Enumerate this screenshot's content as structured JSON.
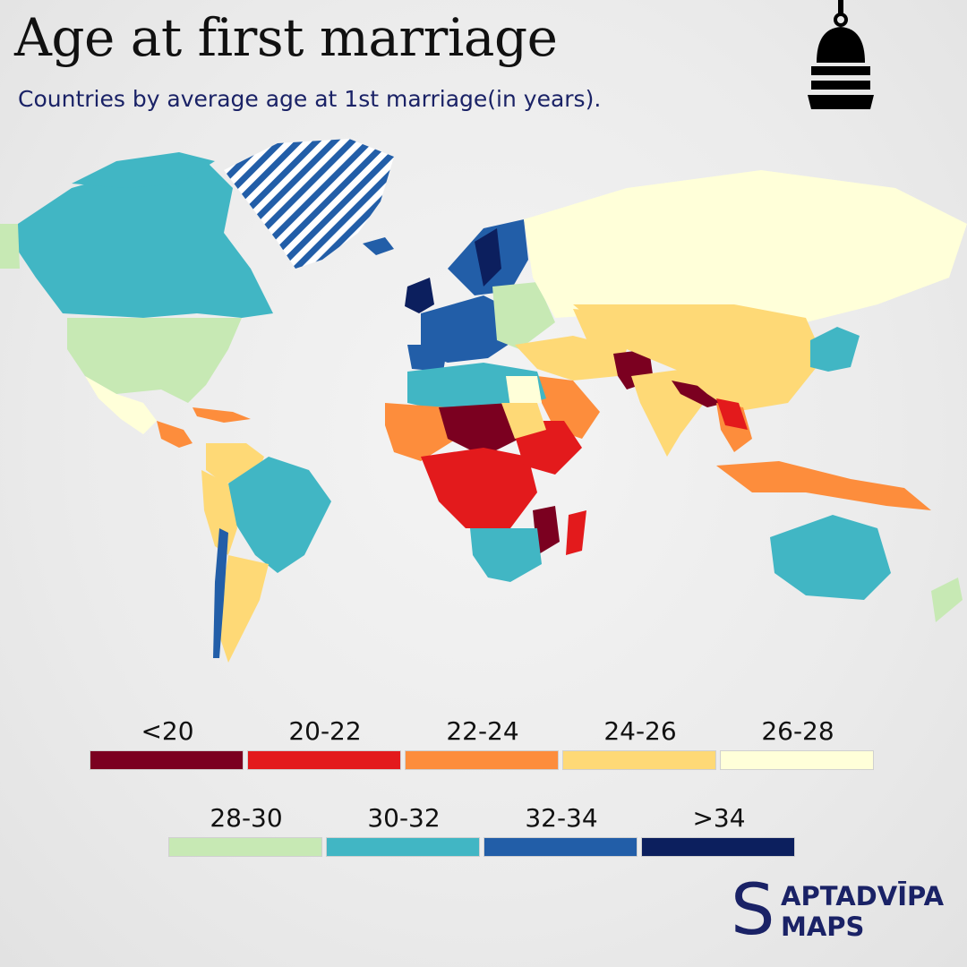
{
  "title": "Age at first marriage",
  "subtitle": "Countries by average age at 1st marriage(in years).",
  "icon": "bell-icon",
  "colors": {
    "lt20": "#7b0020",
    "a20_22": "#e31a1c",
    "a22_24": "#fd8d3c",
    "a24_26": "#fed976",
    "a26_28": "#ffffd9",
    "a28_30": "#c7e9b4",
    "a30_32": "#41b6c4",
    "a32_34": "#225ea8",
    "gt34": "#0c1f5e",
    "brand": "#1a2266"
  },
  "legend": {
    "row1": [
      "<20",
      "20-22",
      "22-24",
      "24-26",
      "26-28"
    ],
    "row2": [
      "28-30",
      "30-32",
      "32-34",
      ">34"
    ]
  },
  "brand": {
    "initial": "S",
    "line1": "APTADVĪPA",
    "line2": "MAPS"
  }
}
